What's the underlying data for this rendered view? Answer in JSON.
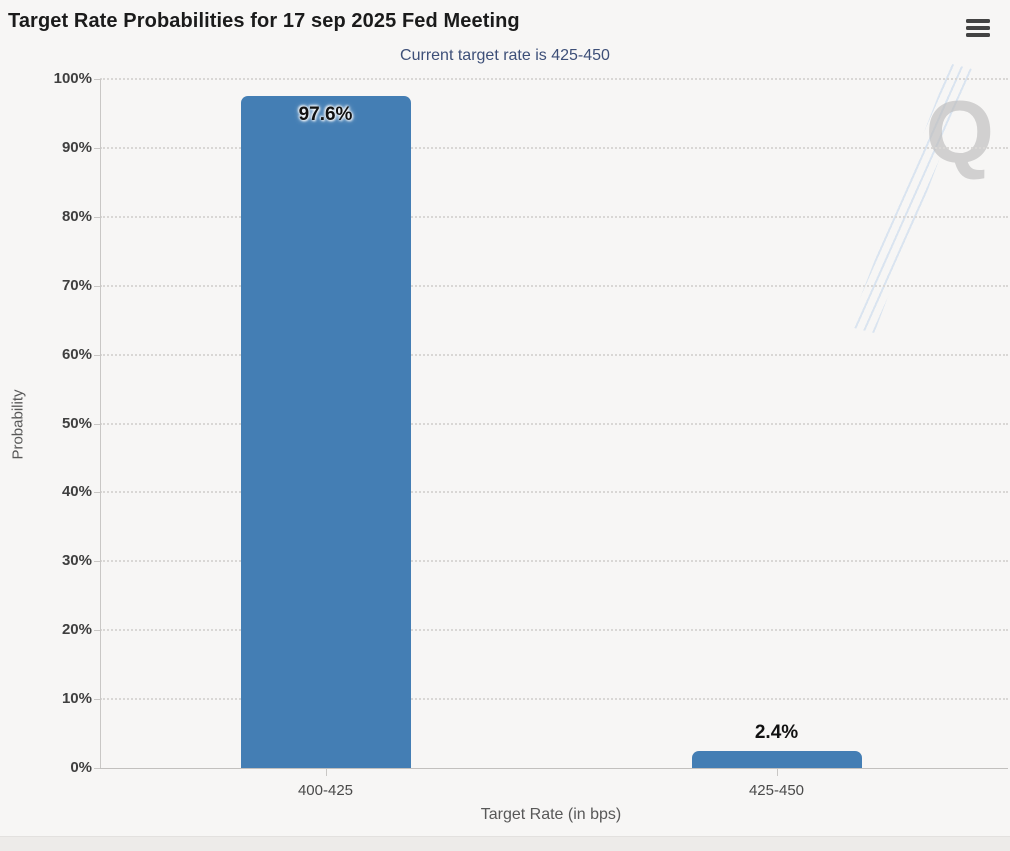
{
  "header": {
    "menu_icon": "hamburger-icon"
  },
  "watermark": {
    "letter": "Q"
  },
  "colors": {
    "background": "#F7F6F5",
    "bar": "#447EB4",
    "title_text": "#1B1B1B",
    "subtitle_text": "#3D4F78",
    "grid_dot": "#D9D7D5",
    "axis_line": "#C9C7C5"
  },
  "chart_data": {
    "type": "bar",
    "title": "Target Rate Probabilities for 17 sep 2025 Fed Meeting",
    "subtitle": "Current target rate is 425-450",
    "categories": [
      "400-425",
      "425-450"
    ],
    "values": [
      97.6,
      2.4
    ],
    "value_labels": [
      "97.6%",
      "2.4%"
    ],
    "xlabel": "Target Rate (in bps)",
    "ylabel": "Probability",
    "ylim": [
      0,
      100
    ],
    "ytick_interval": 10,
    "ytick_labels": [
      "0%",
      "10%",
      "20%",
      "30%",
      "40%",
      "50%",
      "60%",
      "70%",
      "80%",
      "90%",
      "100%"
    ],
    "grid": "horizontal-dotted",
    "legend_position": "none",
    "bar_color": "#447EB4"
  }
}
